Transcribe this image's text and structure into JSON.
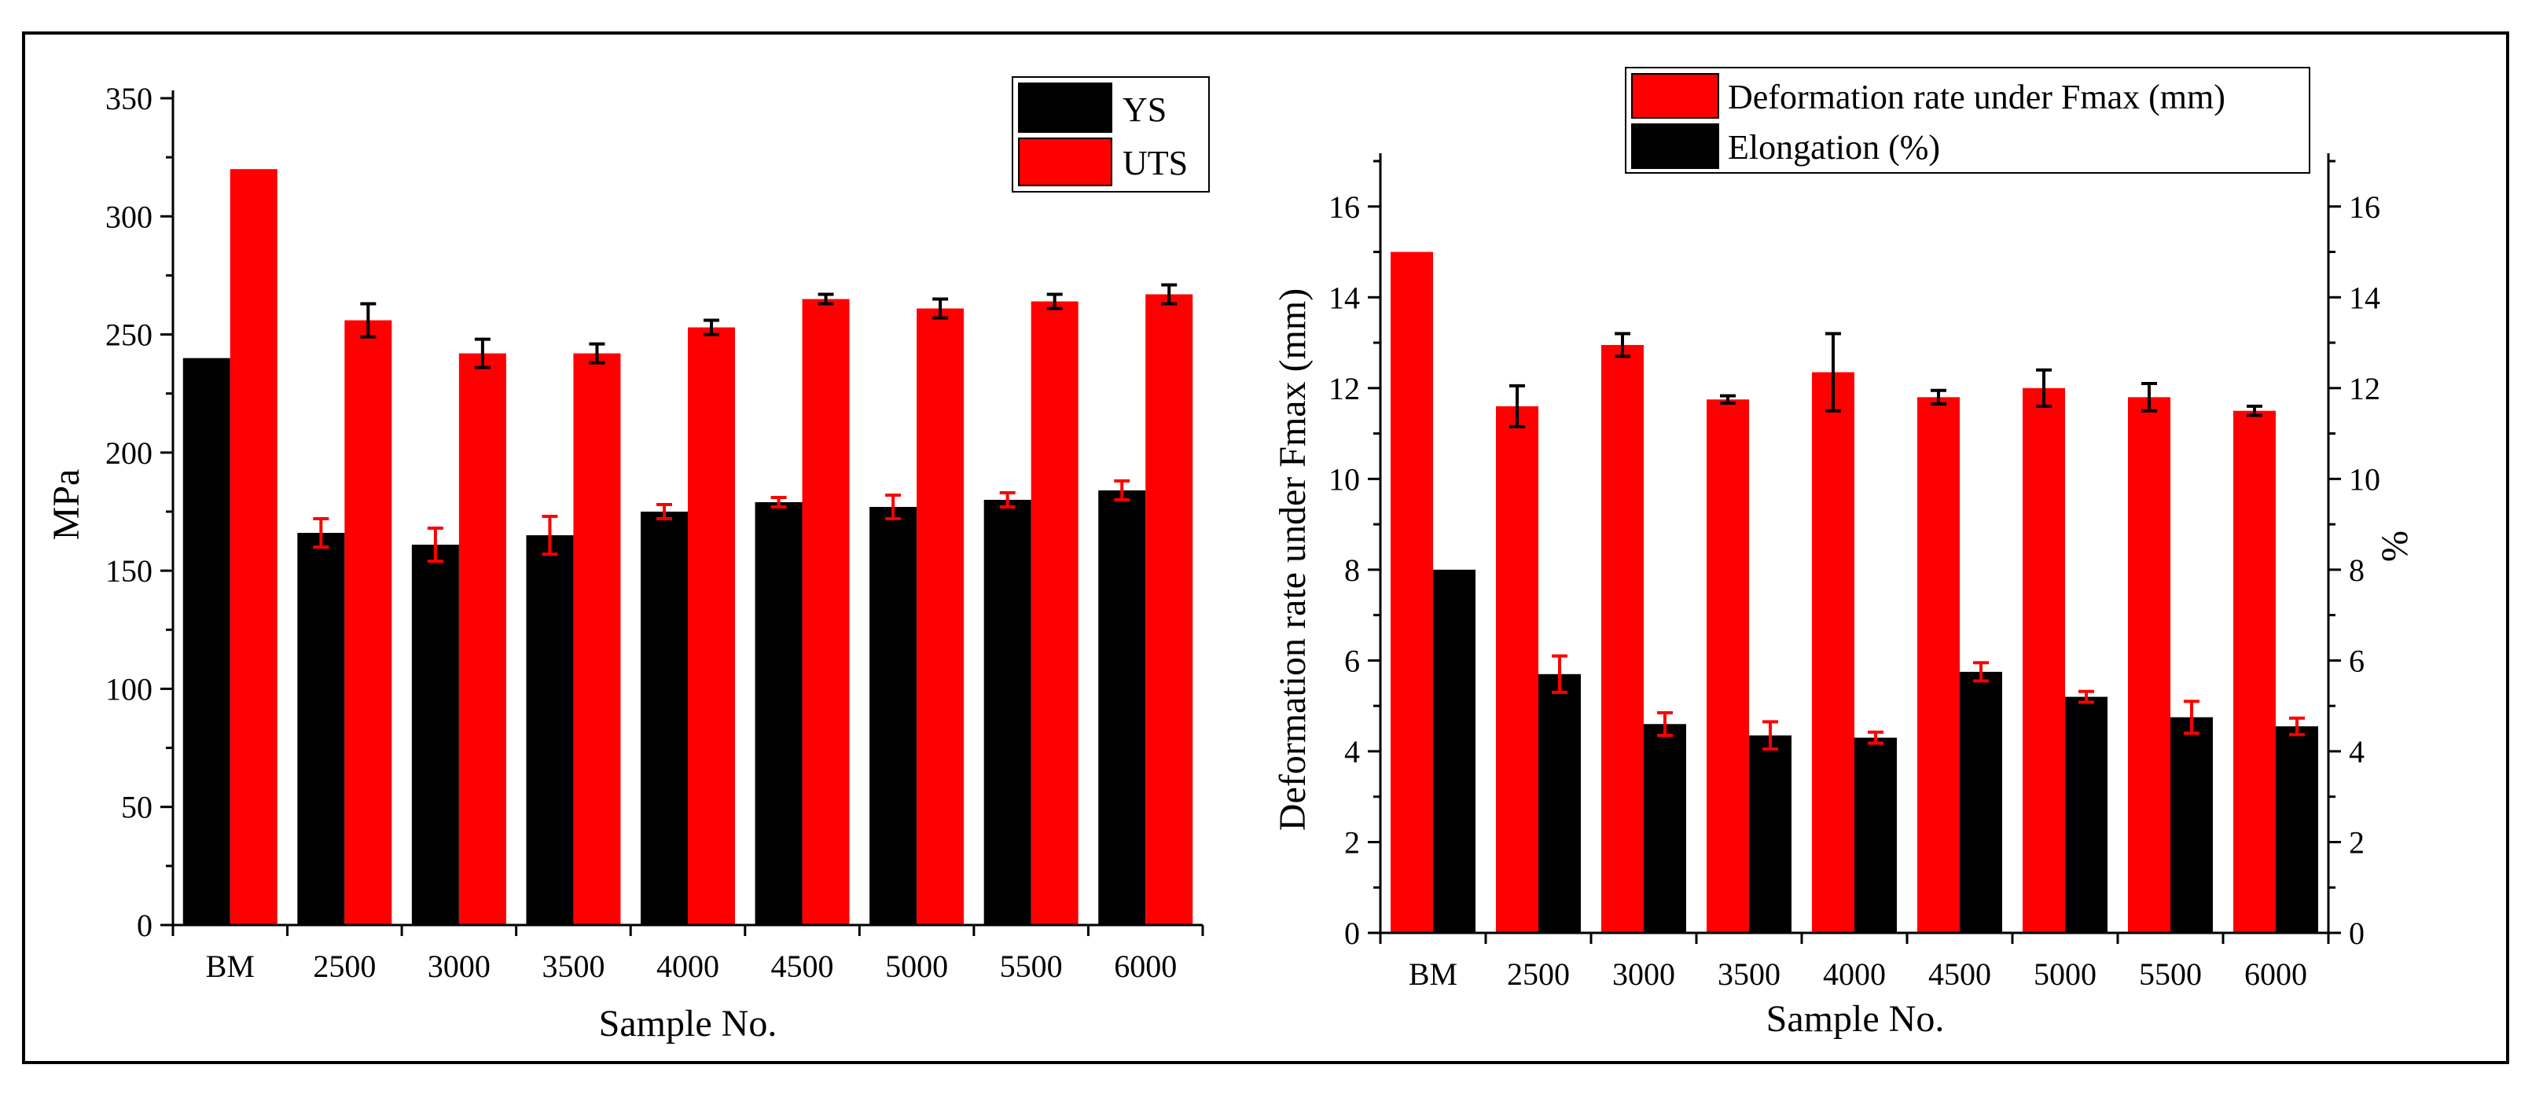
{
  "colors": {
    "ys": "#000000",
    "uts": "#ff0000",
    "axis": "#000000",
    "border": "#000000",
    "background": "#ffffff"
  },
  "chart_data": [
    {
      "type": "bar",
      "title": "",
      "xlabel": "Sample No.",
      "ylabel": "MPa",
      "ylim": [
        0,
        350
      ],
      "yticks": [
        "0",
        "50",
        "100",
        "150",
        "200",
        "250",
        "300",
        "350"
      ],
      "categories": [
        "BM",
        "2500",
        "3000",
        "3500",
        "4000",
        "4500",
        "5000",
        "5500",
        "6000"
      ],
      "legend_position": "top-right",
      "series": [
        {
          "name": "YS",
          "color": "#000000",
          "error_color": "#ff0000",
          "values": [
            240,
            166,
            161,
            165,
            175,
            179,
            177,
            180,
            184
          ],
          "errors": [
            0,
            6,
            7,
            8,
            3,
            2,
            5,
            3,
            4
          ]
        },
        {
          "name": "UTS",
          "color": "#ff0000",
          "error_color": "#000000",
          "values": [
            320,
            256,
            242,
            242,
            253,
            265,
            261,
            264,
            267
          ],
          "errors": [
            0,
            7,
            6,
            4,
            3,
            2,
            4,
            3,
            4
          ]
        }
      ]
    },
    {
      "type": "bar",
      "title": "",
      "xlabel": "Sample No.",
      "ylabel": "Deformation rate under Fmax (mm)",
      "y2label": "%",
      "ylim": [
        0,
        17
      ],
      "yticks": [
        "0",
        "2",
        "4",
        "6",
        "8",
        "10",
        "12",
        "14",
        "16"
      ],
      "y2ticks": [
        "0",
        "2",
        "4",
        "6",
        "8",
        "10",
        "12",
        "14",
        "16"
      ],
      "categories": [
        "BM",
        "2500",
        "3000",
        "3500",
        "4000",
        "4500",
        "5000",
        "5500",
        "6000"
      ],
      "legend_position": "top",
      "series": [
        {
          "name": "Deformation rate under Fmax (mm)",
          "color": "#ff0000",
          "error_color": "#000000",
          "values": [
            15.0,
            11.6,
            12.95,
            11.75,
            12.35,
            11.8,
            12.0,
            11.8,
            11.5
          ],
          "errors": [
            0,
            0.45,
            0.25,
            0.08,
            0.85,
            0.15,
            0.4,
            0.3,
            0.1
          ]
        },
        {
          "name": "Elongation (%)",
          "color": "#000000",
          "error_color": "#ff0000",
          "values": [
            8.0,
            5.7,
            4.6,
            4.35,
            4.3,
            5.75,
            5.2,
            4.75,
            4.55
          ],
          "errors": [
            0,
            0.4,
            0.25,
            0.3,
            0.12,
            0.2,
            0.12,
            0.35,
            0.18
          ]
        }
      ]
    }
  ]
}
